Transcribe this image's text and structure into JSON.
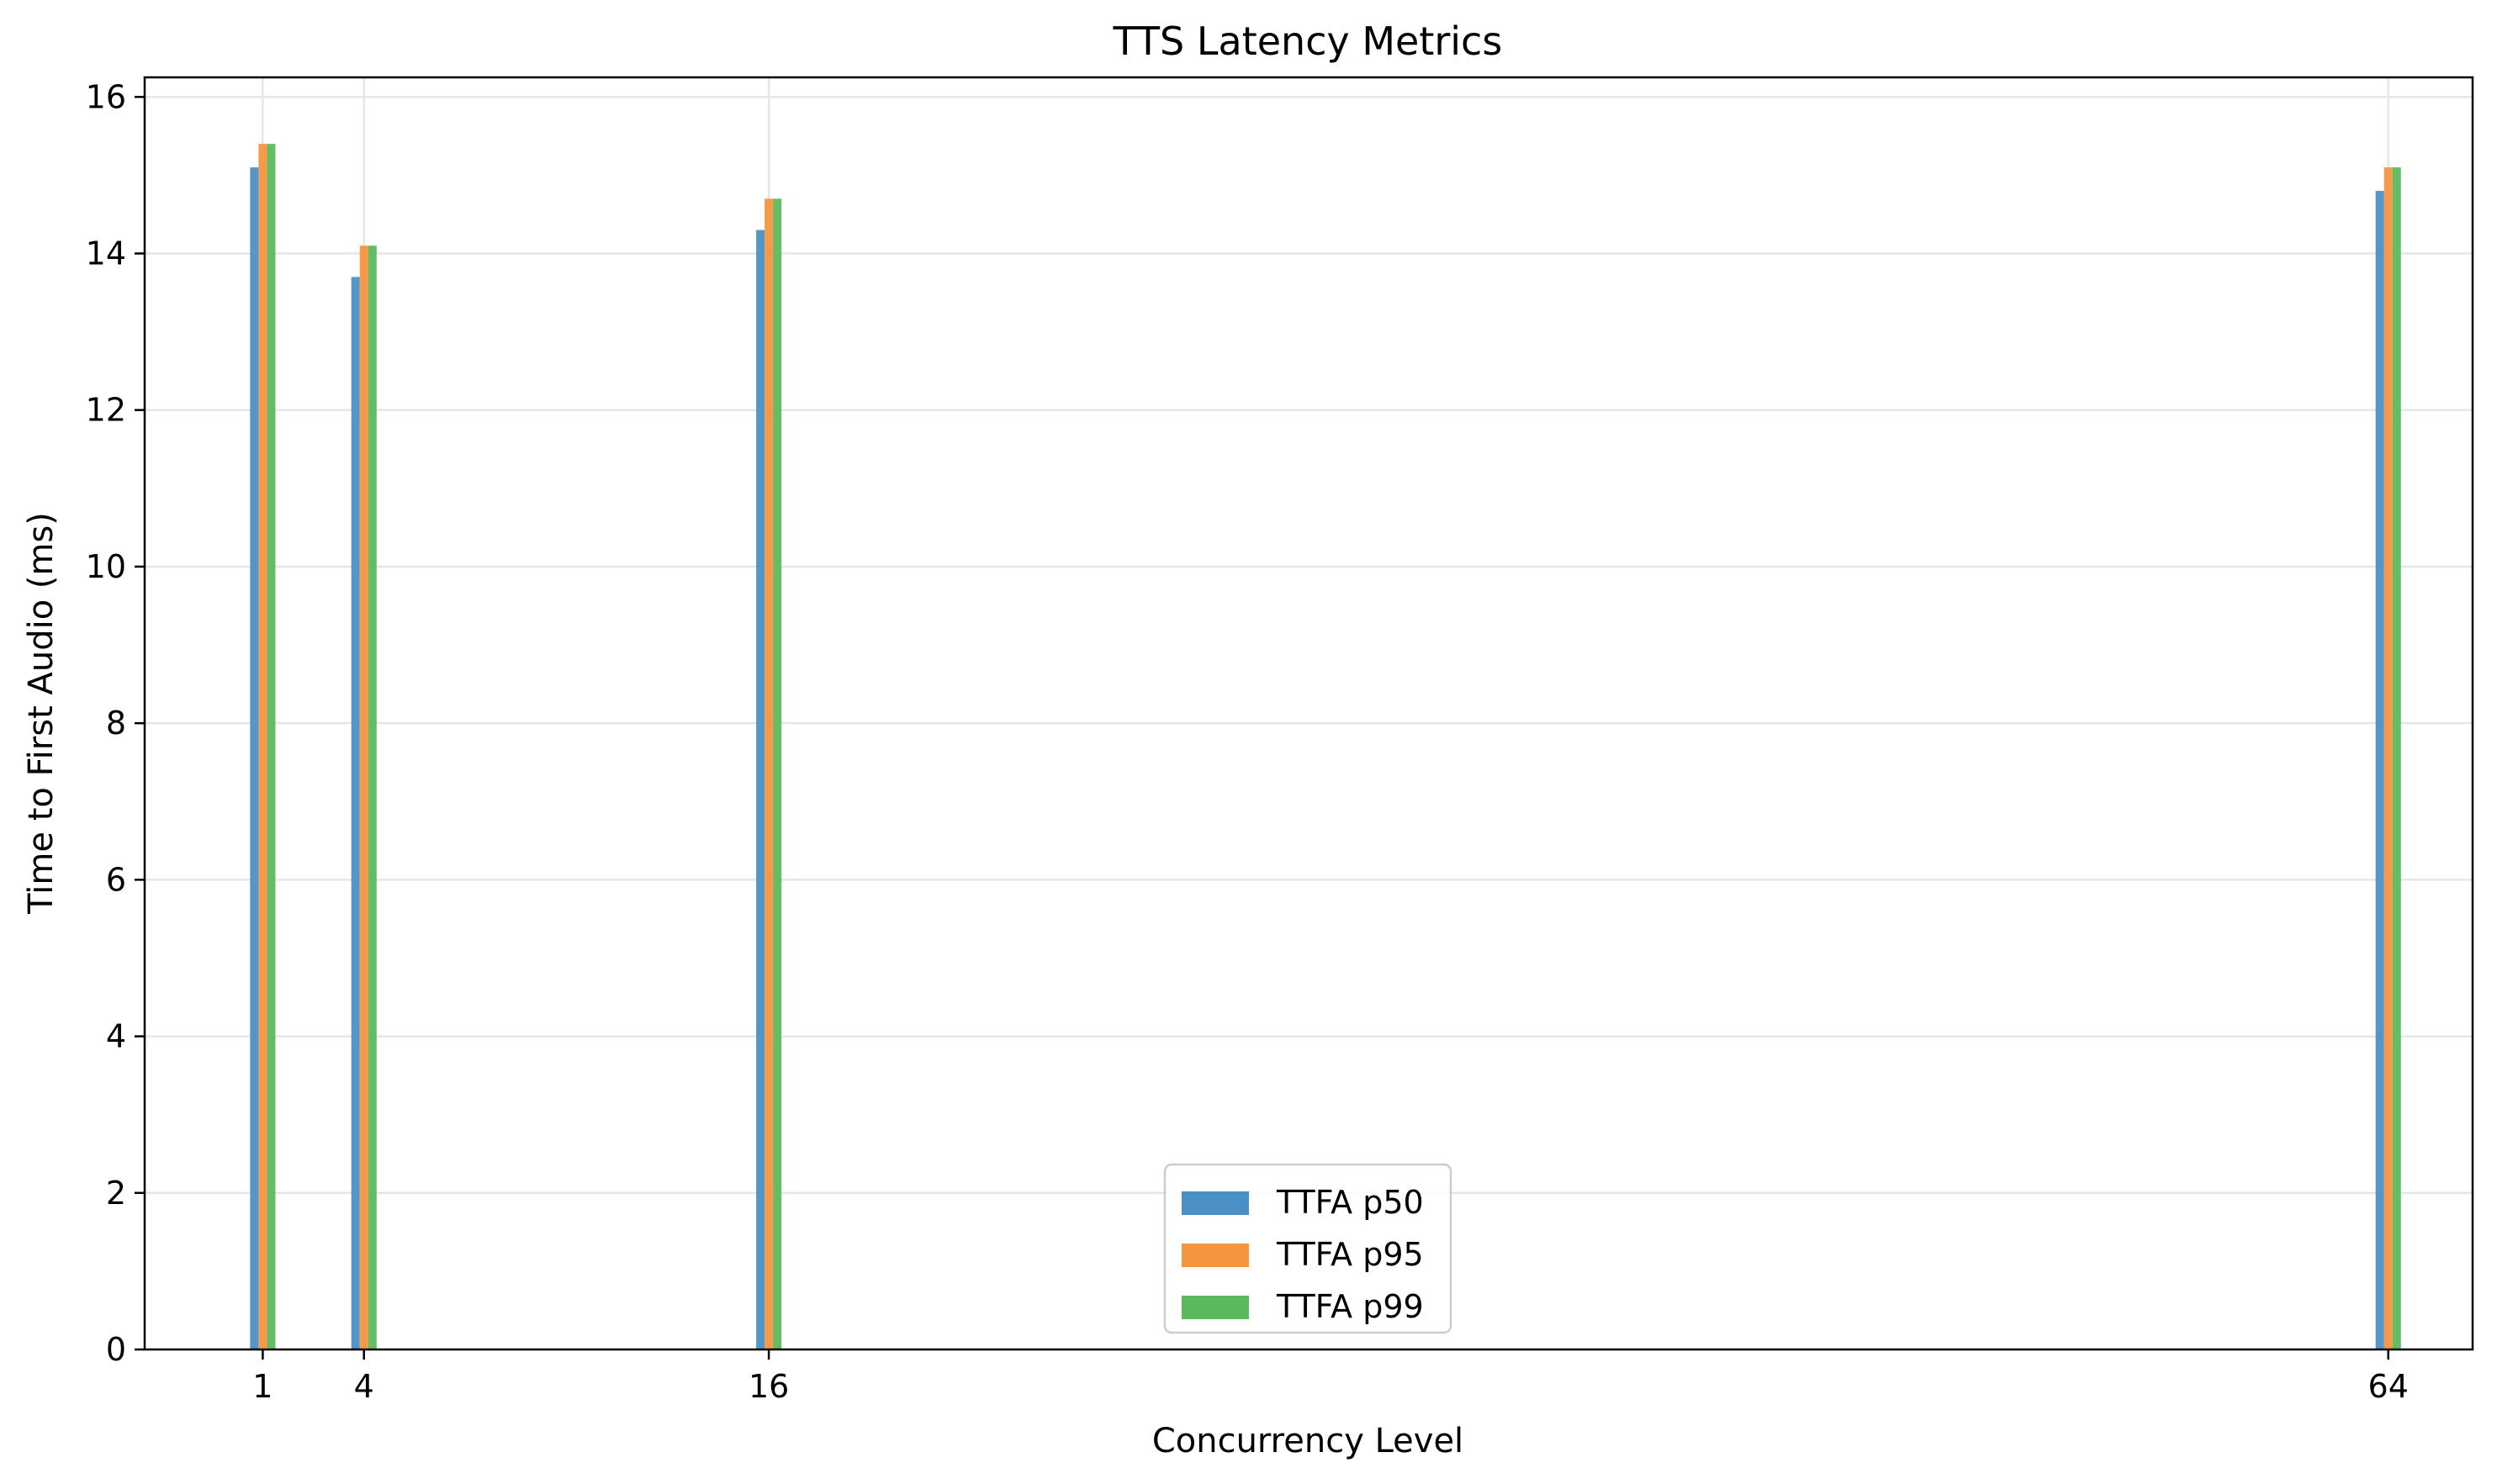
{
  "chart_data": {
    "type": "bar",
    "title": "TTS Latency Metrics",
    "xlabel": "Concurrency Level",
    "ylabel": "Time to First Audio (ms)",
    "x": [
      1,
      4,
      16,
      64
    ],
    "x_tick_labels": [
      "1",
      "4",
      "16",
      "64"
    ],
    "xlim": [
      -2.5,
      66.5
    ],
    "ylim": [
      0,
      16.25
    ],
    "y_ticks": [
      0,
      2,
      4,
      6,
      8,
      10,
      12,
      14,
      16
    ],
    "y_tick_labels": [
      "0",
      "2",
      "4",
      "6",
      "8",
      "10",
      "12",
      "14",
      "16"
    ],
    "grid": true,
    "legend_position": "bottom-center",
    "series": [
      {
        "name": "TTFA p50",
        "color": "#4a90c4",
        "values": [
          15.1,
          13.7,
          14.3,
          14.8
        ]
      },
      {
        "name": "TTFA p95",
        "color": "#f5953f",
        "values": [
          15.4,
          14.1,
          14.7,
          15.1
        ]
      },
      {
        "name": "TTFA p99",
        "color": "#5cb85c",
        "values": [
          15.4,
          14.1,
          14.7,
          15.1
        ]
      }
    ]
  }
}
